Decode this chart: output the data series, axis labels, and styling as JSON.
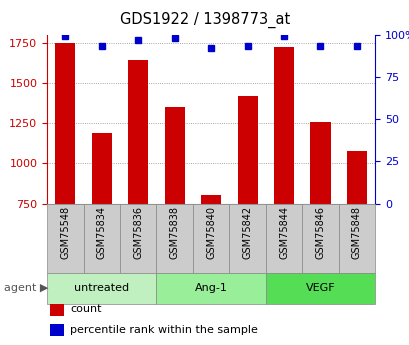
{
  "title": "GDS1922 / 1398773_at",
  "samples": [
    "GSM75548",
    "GSM75834",
    "GSM75836",
    "GSM75838",
    "GSM75840",
    "GSM75842",
    "GSM75844",
    "GSM75846",
    "GSM75848"
  ],
  "counts": [
    1745,
    1190,
    1640,
    1350,
    800,
    1415,
    1720,
    1255,
    1075
  ],
  "percentiles": [
    99,
    93,
    97,
    98,
    92,
    93,
    99,
    93,
    93
  ],
  "groups": [
    {
      "label": "untreated",
      "indices": [
        0,
        1,
        2
      ],
      "color": "#c0f0c0"
    },
    {
      "label": "Ang-1",
      "indices": [
        3,
        4,
        5
      ],
      "color": "#99ee99"
    },
    {
      "label": "VEGF",
      "indices": [
        6,
        7,
        8
      ],
      "color": "#55dd55"
    }
  ],
  "ylim_left": [
    750,
    1800
  ],
  "ylim_right": [
    0,
    100
  ],
  "yticks_left": [
    750,
    1000,
    1250,
    1500,
    1750
  ],
  "yticks_right": [
    0,
    25,
    50,
    75,
    100
  ],
  "bar_color": "#cc0000",
  "dot_color": "#0000cc",
  "bar_width": 0.55,
  "bg_color": "#ffffff",
  "grid_color": "#888888",
  "left_label_color": "#cc0000",
  "right_label_color": "#0000cc",
  "sample_box_color": "#cccccc",
  "agent_label": "agent",
  "legend_items": [
    {
      "color": "#cc0000",
      "label": "count"
    },
    {
      "color": "#0000cc",
      "label": "percentile rank within the sample"
    }
  ]
}
